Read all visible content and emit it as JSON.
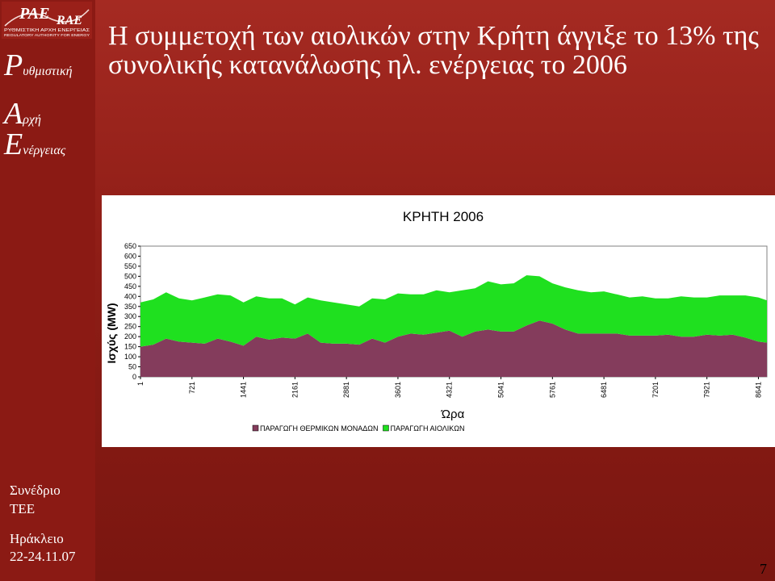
{
  "logo": {
    "text_1": "PAE",
    "text_2": "RAE",
    "subtitle_1": "ΡΥΘΜΙΣΤΙΚΗ ΑΡΧΗ ΕΝΕΡΓΕΙΑΣ",
    "subtitle_2": "REGULATORY AUTHORITY FOR ENERGY"
  },
  "sidebar": {
    "brand": [
      {
        "initial": "P",
        "rest": "υθμιστική"
      },
      {
        "initial": "A",
        "rest": "ρχή"
      },
      {
        "initial": "E",
        "rest": "νέργειας"
      }
    ],
    "footer": [
      "Συνέδριο",
      "ΤΕΕ",
      "Ηράκλειο",
      "22-24.11.07"
    ]
  },
  "slide": {
    "title_line_1": "Η συμμετοχή των αιολικών στην Κρήτη άγγιξε το 13% της",
    "title_line_2": "συνολικής κατανάλωσης ηλ. ενέργειας το 2006",
    "page_number": "7"
  },
  "colors": {
    "sidebar": "#8b1a14",
    "background": "#8e1d16",
    "thermal": "#843c5c",
    "wind": "#1fe01f"
  },
  "chart_data": {
    "type": "area",
    "stacked": true,
    "title": "ΚΡΗΤΗ 2006",
    "xlabel": "Ώρα",
    "ylabel": "Ισχύς (MW)",
    "ylim": [
      0,
      650
    ],
    "yticks": [
      0,
      50,
      100,
      150,
      200,
      250,
      300,
      350,
      400,
      450,
      500,
      550,
      600,
      650
    ],
    "xlim": [
      1,
      8760
    ],
    "xticks": [
      1,
      721,
      1441,
      2161,
      2881,
      3601,
      4321,
      5041,
      5761,
      6481,
      7201,
      7921,
      8641
    ],
    "legend_position": "bottom",
    "series": [
      {
        "name": "ΠΑΡΑΓΩΓΗ ΘΕΡΜΙΚΩΝ ΜΟΝΑΔΩΝ",
        "color": "#843c5c",
        "x": [
          1,
          180,
          360,
          540,
          721,
          900,
          1080,
          1260,
          1441,
          1620,
          1800,
          1980,
          2161,
          2340,
          2520,
          2700,
          2881,
          3060,
          3240,
          3420,
          3601,
          3780,
          3960,
          4140,
          4321,
          4500,
          4680,
          4860,
          5041,
          5220,
          5400,
          5580,
          5761,
          5940,
          6120,
          6300,
          6481,
          6660,
          6840,
          7020,
          7201,
          7380,
          7560,
          7740,
          7921,
          8100,
          8280,
          8460,
          8641,
          8760
        ],
        "values": [
          150,
          160,
          190,
          175,
          170,
          165,
          190,
          175,
          155,
          200,
          185,
          195,
          190,
          215,
          170,
          165,
          165,
          160,
          190,
          170,
          200,
          215,
          210,
          220,
          230,
          200,
          225,
          235,
          225,
          225,
          255,
          280,
          265,
          235,
          215,
          215,
          215,
          215,
          205,
          205,
          205,
          210,
          200,
          200,
          210,
          205,
          210,
          195,
          175,
          170
        ]
      },
      {
        "name": "ΠΑΡΑΓΩΓΗ ΑΙΟΛΙΚΩΝ",
        "color": "#1fe01f",
        "x": [
          1,
          180,
          360,
          540,
          721,
          900,
          1080,
          1260,
          1441,
          1620,
          1800,
          1980,
          2161,
          2340,
          2520,
          2700,
          2881,
          3060,
          3240,
          3420,
          3601,
          3780,
          3960,
          4140,
          4321,
          4500,
          4680,
          4860,
          5041,
          5220,
          5400,
          5580,
          5761,
          5940,
          6120,
          6300,
          6481,
          6660,
          6840,
          7020,
          7201,
          7380,
          7560,
          7740,
          7921,
          8100,
          8280,
          8460,
          8641,
          8760
        ],
        "values": [
          220,
          225,
          230,
          215,
          210,
          230,
          220,
          230,
          215,
          200,
          205,
          195,
          170,
          180,
          210,
          205,
          195,
          190,
          200,
          215,
          215,
          195,
          200,
          210,
          190,
          230,
          215,
          240,
          235,
          240,
          250,
          220,
          200,
          210,
          215,
          205,
          210,
          195,
          190,
          195,
          185,
          180,
          200,
          195,
          185,
          200,
          195,
          210,
          220,
          210
        ]
      }
    ]
  }
}
